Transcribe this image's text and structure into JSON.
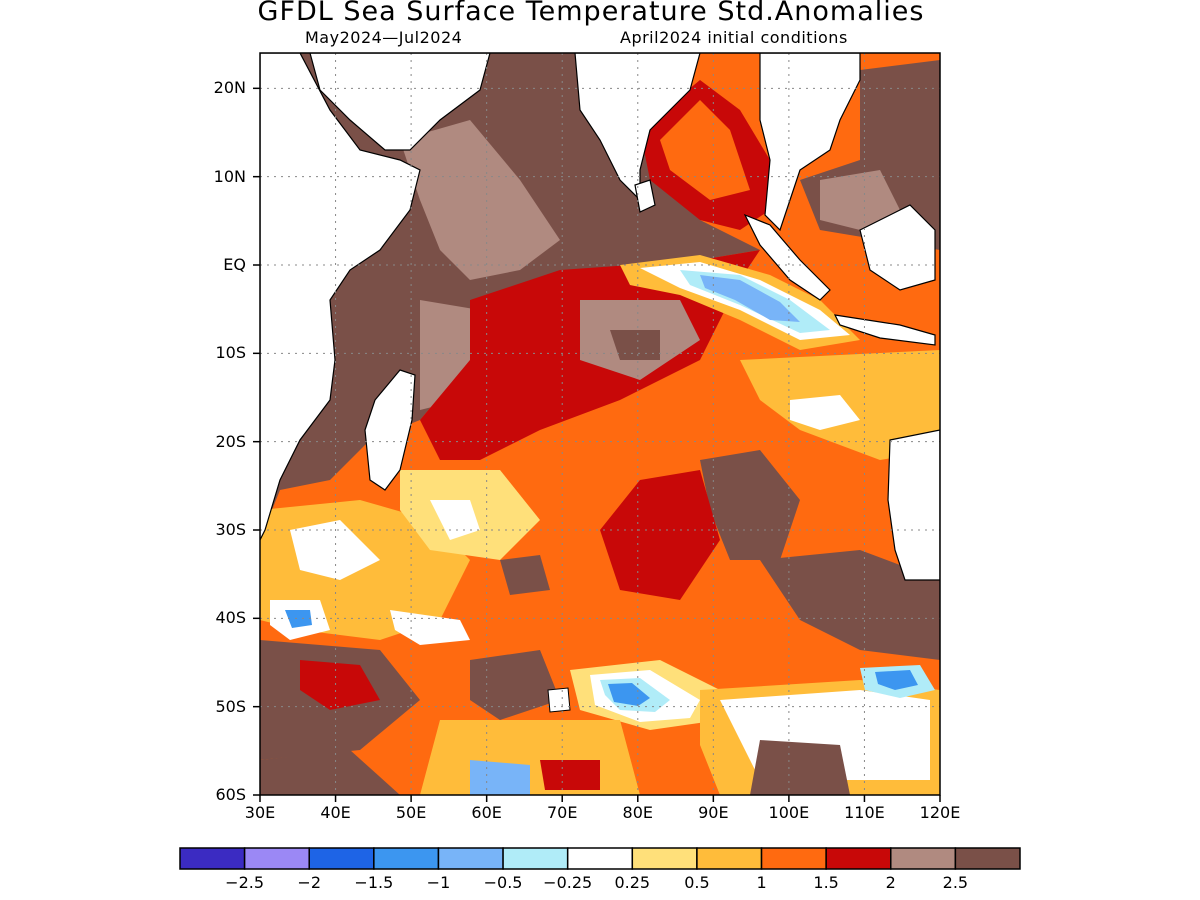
{
  "title": "GFDL Sea Surface Temperature Std.Anomalies",
  "subtitle_left": "May2024—Jul2024",
  "subtitle_right": "April2024 initial conditions",
  "map": {
    "lon_range": [
      30,
      120
    ],
    "lat_range": [
      -60,
      24
    ],
    "lat_ticks": [
      {
        "value": 20,
        "label": "20N"
      },
      {
        "value": 10,
        "label": "10N"
      },
      {
        "value": 0,
        "label": "EQ"
      },
      {
        "value": -10,
        "label": "10S"
      },
      {
        "value": -20,
        "label": "20S"
      },
      {
        "value": -30,
        "label": "30S"
      },
      {
        "value": -40,
        "label": "40S"
      },
      {
        "value": -50,
        "label": "50S"
      },
      {
        "value": -60,
        "label": "60S"
      }
    ],
    "lon_ticks": [
      {
        "value": 30,
        "label": "30E"
      },
      {
        "value": 40,
        "label": "40E"
      },
      {
        "value": 50,
        "label": "50E"
      },
      {
        "value": 60,
        "label": "60E"
      },
      {
        "value": 70,
        "label": "70E"
      },
      {
        "value": 80,
        "label": "80E"
      },
      {
        "value": 90,
        "label": "90E"
      },
      {
        "value": 100,
        "label": "100E"
      },
      {
        "value": 110,
        "label": "110E"
      },
      {
        "value": 120,
        "label": "120E"
      }
    ],
    "grid": true
  },
  "colorbar": {
    "colors": [
      "#3b2bc2",
      "#9b88f5",
      "#1e64e6",
      "#3c96f0",
      "#78b4f8",
      "#b0ecf8",
      "#ffffff",
      "#ffe07a",
      "#ffbc3a",
      "#ff6a10",
      "#c80808",
      "#b08a80",
      "#7a5048"
    ],
    "labels": [
      "−2.5",
      "−2",
      "−1.5",
      "−1",
      "−0.5",
      "−0.25",
      "0.25",
      "0.5",
      "1",
      "1.5",
      "2",
      "2.5"
    ]
  }
}
